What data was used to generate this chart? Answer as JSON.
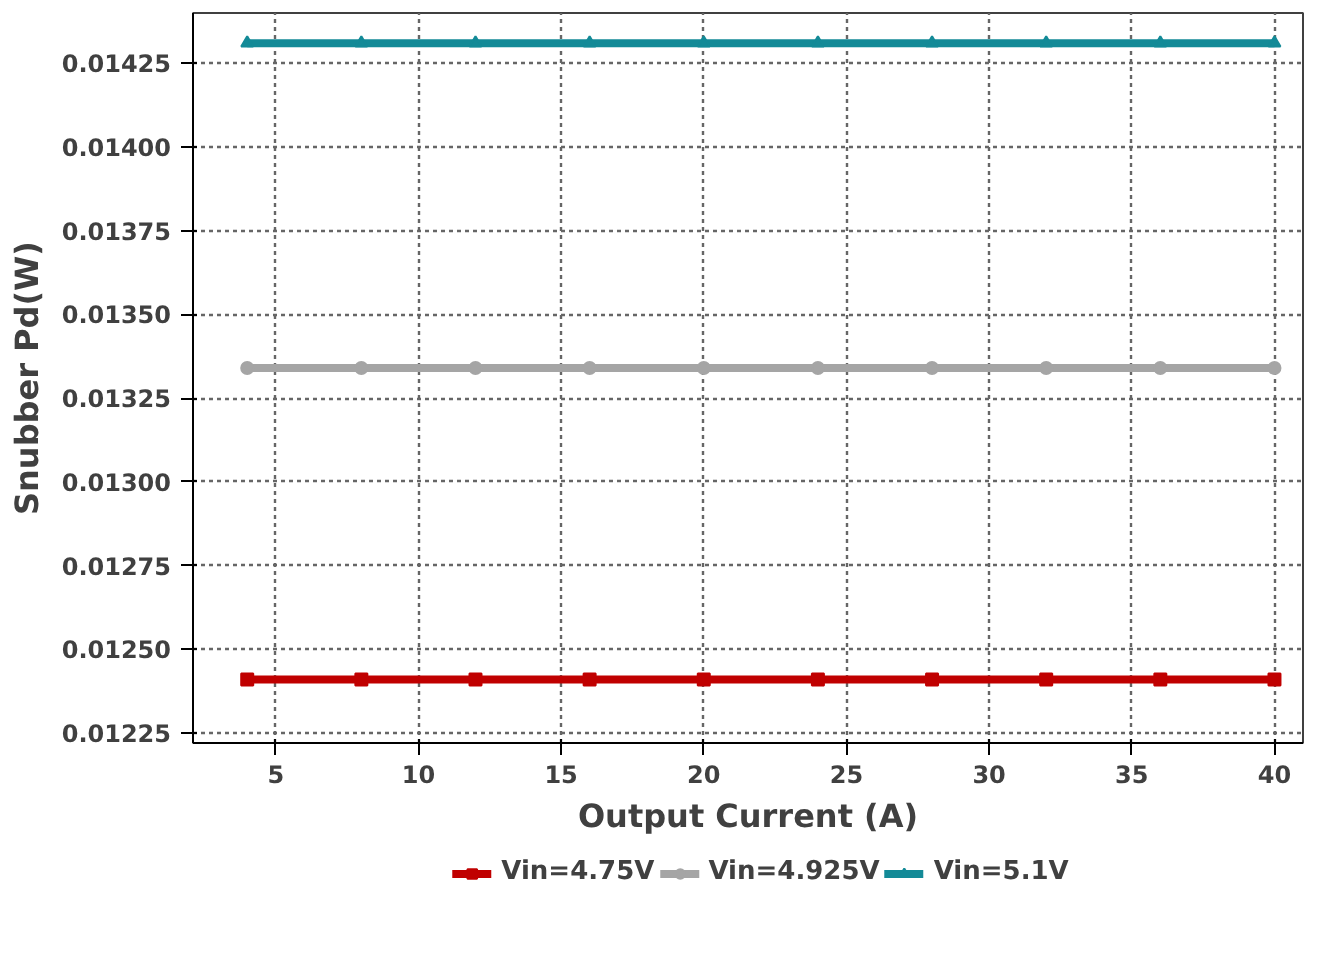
{
  "chart_data": {
    "type": "line",
    "xlabel": "Output Current (A)",
    "ylabel": "Snubber Pd(W)",
    "x": [
      4,
      8,
      12,
      16,
      20,
      24,
      28,
      32,
      36,
      40
    ],
    "series": [
      {
        "name": "Vin=4.75V",
        "color": "#c00000",
        "marker": "square",
        "values": [
          0.01241,
          0.01241,
          0.01241,
          0.01241,
          0.01241,
          0.01241,
          0.01241,
          0.01241,
          0.01241,
          0.01241
        ]
      },
      {
        "name": "Vin=4.925V",
        "color": "#a5a5a5",
        "marker": "circle",
        "values": [
          0.01334,
          0.01334,
          0.01334,
          0.01334,
          0.01334,
          0.01334,
          0.01334,
          0.01334,
          0.01334,
          0.01334
        ]
      },
      {
        "name": "Vin=5.1V",
        "color": "#138a97",
        "marker": "triangle",
        "values": [
          0.01431,
          0.01431,
          0.01431,
          0.01431,
          0.01431,
          0.01431,
          0.01431,
          0.01431,
          0.01431,
          0.01431
        ]
      }
    ],
    "xlim": [
      2.1,
      41
    ],
    "ylim": [
      0.01222,
      0.0144
    ],
    "xticks": [
      5,
      10,
      15,
      20,
      25,
      30,
      35,
      40
    ],
    "yticks": [
      0.01225,
      {
        "value": 0.0125,
        "label": "0.01250"
      },
      0.01275,
      {
        "value": 0.013,
        "label": "0.01300"
      },
      0.01325,
      {
        "value": 0.0135,
        "label": "0.01350"
      },
      0.01375,
      {
        "value": 0.014,
        "label": "0.01400"
      },
      0.01425
    ],
    "grid": true,
    "legend": "bottom",
    "line_style": "solid"
  }
}
